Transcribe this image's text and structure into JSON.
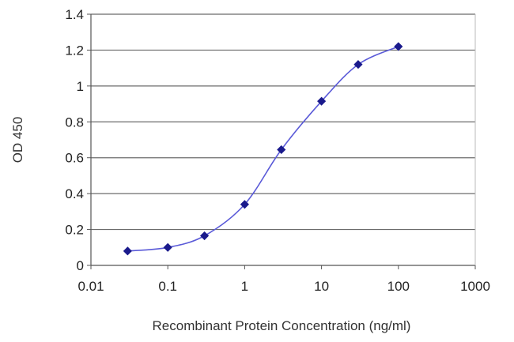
{
  "chart_data": {
    "type": "line",
    "title": "",
    "xlabel": "Recombinant Protein Concentration (ng/ml)",
    "ylabel": "OD 450",
    "x_scale": "log",
    "xlim": [
      0.01,
      1000
    ],
    "ylim": [
      0,
      1.4
    ],
    "x_ticks": [
      0.01,
      0.1,
      1,
      10,
      100,
      1000
    ],
    "x_tick_labels": [
      "0.01",
      "0.1",
      "1",
      "10",
      "100",
      "1000"
    ],
    "y_ticks": [
      0,
      0.2,
      0.4,
      0.6,
      0.8,
      1,
      1.2,
      1.4
    ],
    "y_tick_labels": [
      "0",
      "0.2",
      "0.4",
      "0.6",
      "0.8",
      "1",
      "1.2",
      "1.4"
    ],
    "grid": "horizontal",
    "legend": "none",
    "series": [
      {
        "x": [
          0.03,
          0.1,
          0.3,
          1,
          3,
          10,
          30,
          100
        ],
        "y": [
          0.08,
          0.1,
          0.165,
          0.34,
          0.645,
          0.915,
          1.12,
          1.22
        ]
      }
    ],
    "colors": {
      "line": "#5a5ad8",
      "marker": "#1a1a8c",
      "grid": "#6b6b6b",
      "axis": "#555555"
    }
  }
}
